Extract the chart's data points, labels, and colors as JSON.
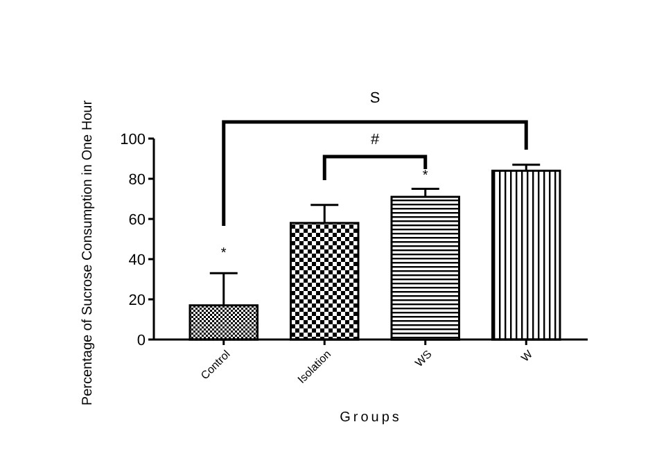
{
  "chart_data": {
    "type": "bar",
    "xlabel": "Groups",
    "ylabel": "Percentage of Sucrose Consumption in One Hour",
    "categories": [
      "Control",
      "Isolation",
      "WS",
      "W"
    ],
    "values": [
      17,
      58,
      71,
      84
    ],
    "errors": [
      [
        17,
        33
      ],
      [
        58,
        67
      ],
      [
        71,
        75
      ],
      [
        84,
        87
      ]
    ],
    "color": "#000000",
    "ylim": [
      0,
      100
    ],
    "yticks": [
      0,
      20,
      40,
      60,
      80,
      100
    ],
    "grid": false,
    "annotations": [
      "*",
      "*",
      "#",
      "S"
    ]
  }
}
